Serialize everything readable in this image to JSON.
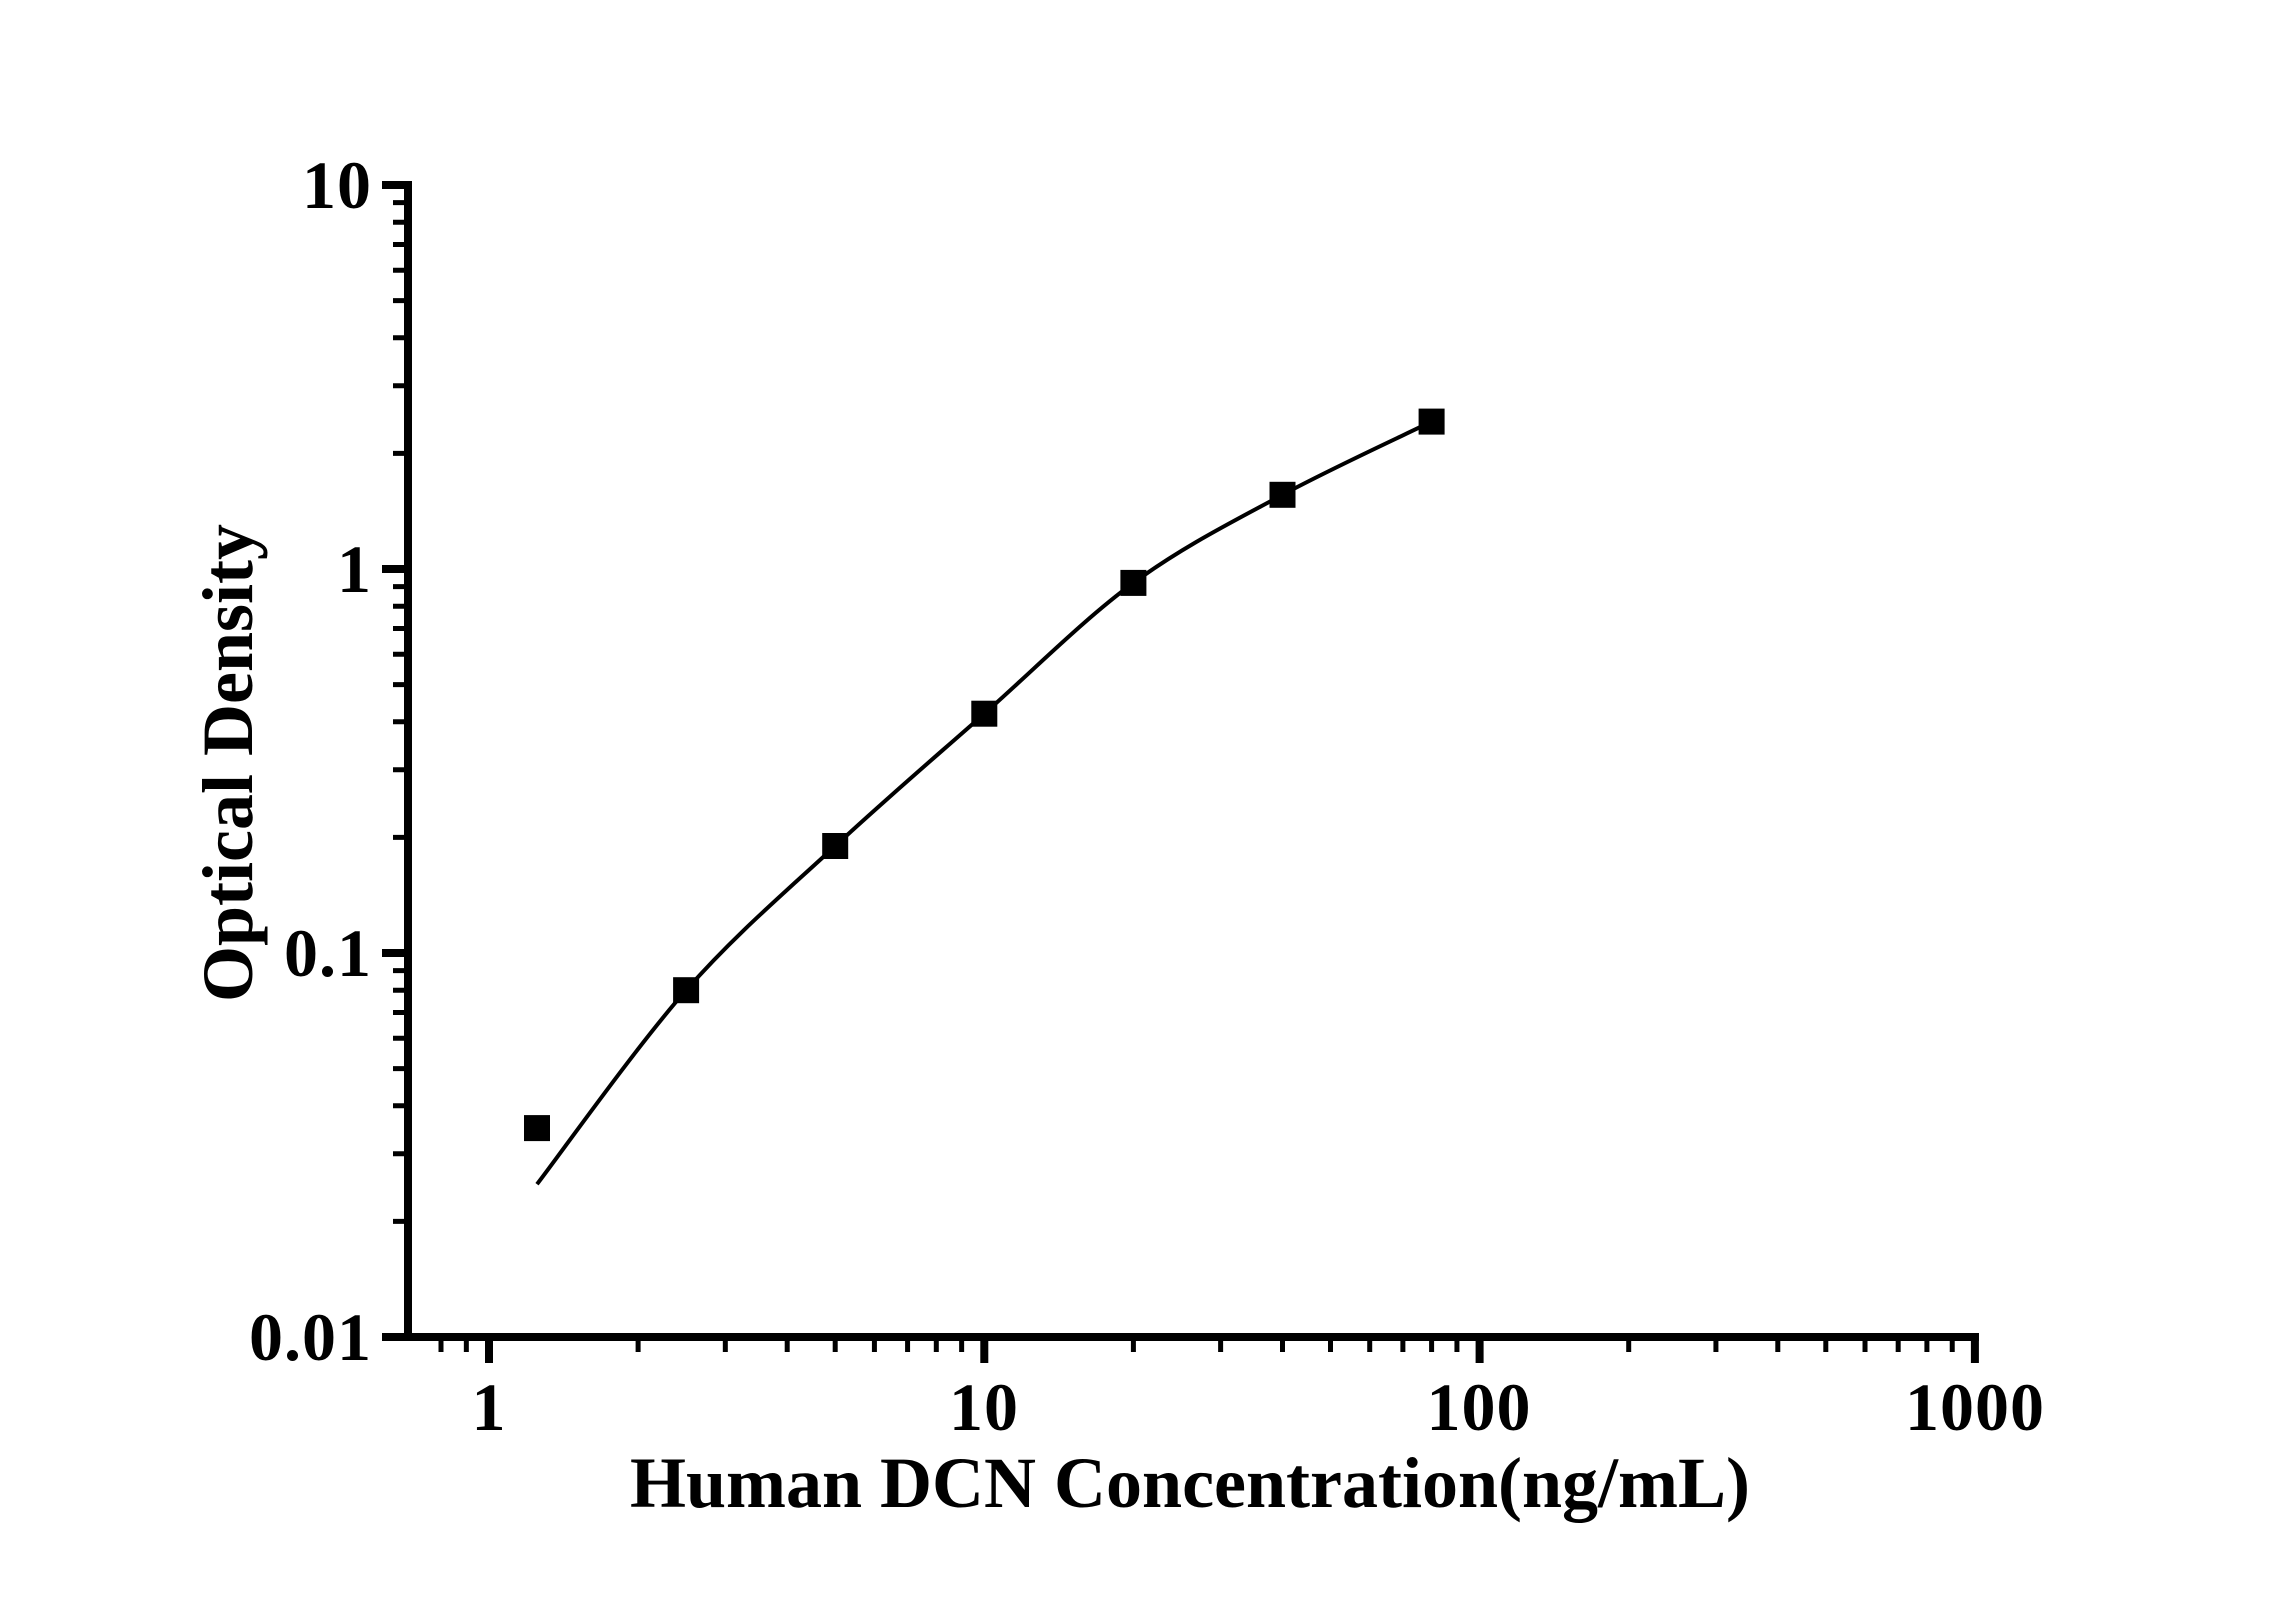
{
  "chart_data": {
    "type": "scatter",
    "title": "",
    "xlabel": "Human DCN Concentration(ng/mL)",
    "ylabel": "Optical Density",
    "x_scale": "log",
    "y_scale": "log",
    "xlim": [
      0.7,
      1000
    ],
    "ylim": [
      0.01,
      10
    ],
    "grid": false,
    "legend": false,
    "x_ticks": [
      {
        "value": 1,
        "label": "1"
      },
      {
        "value": 10,
        "label": "10"
      },
      {
        "value": 100,
        "label": "100"
      },
      {
        "value": 1000,
        "label": "1000"
      }
    ],
    "y_ticks": [
      {
        "value": 10,
        "label": "10"
      },
      {
        "value": 1,
        "label": "1"
      },
      {
        "value": 0.1,
        "label": "0.1"
      },
      {
        "value": 0.01,
        "label": "0.01"
      }
    ],
    "series": [
      {
        "name": "standard-curve-points",
        "marker": "filled-square",
        "color": "#000000",
        "points": [
          {
            "x": 1.25,
            "y": 0.035
          },
          {
            "x": 2.5,
            "y": 0.08
          },
          {
            "x": 5,
            "y": 0.19
          },
          {
            "x": 10,
            "y": 0.42
          },
          {
            "x": 20,
            "y": 0.92
          },
          {
            "x": 40,
            "y": 1.56
          },
          {
            "x": 80,
            "y": 2.42
          }
        ]
      }
    ],
    "fit_line": {
      "color": "#000000",
      "points": [
        {
          "x": 1.25,
          "y": 0.025
        },
        {
          "x": 2.5,
          "y": 0.08
        },
        {
          "x": 5,
          "y": 0.19
        },
        {
          "x": 10,
          "y": 0.42
        },
        {
          "x": 20,
          "y": 0.92
        },
        {
          "x": 40,
          "y": 1.56
        },
        {
          "x": 80,
          "y": 2.42
        }
      ]
    }
  },
  "colors": {
    "background": "#ffffff",
    "axis": "#000000",
    "text": "#000000"
  }
}
